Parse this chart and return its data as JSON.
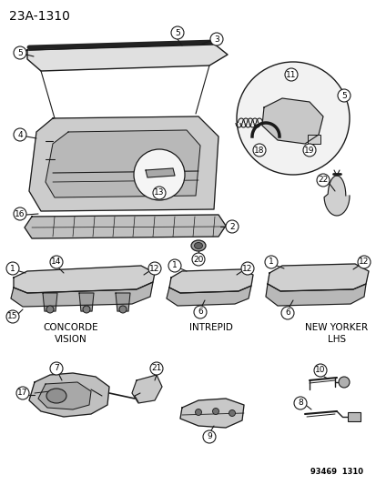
{
  "title": "23A-1310",
  "footer": "93469  1310",
  "background_color": "#ffffff",
  "line_color": "#1a1a1a",
  "text_color": "#000000",
  "fig_width": 4.14,
  "fig_height": 5.33,
  "dpi": 100,
  "labels": {
    "concorde_vision": "CONCORDE\nVISION",
    "intrepid": "INTREPID",
    "new_yorker": "NEW YORKER\nLHS"
  }
}
